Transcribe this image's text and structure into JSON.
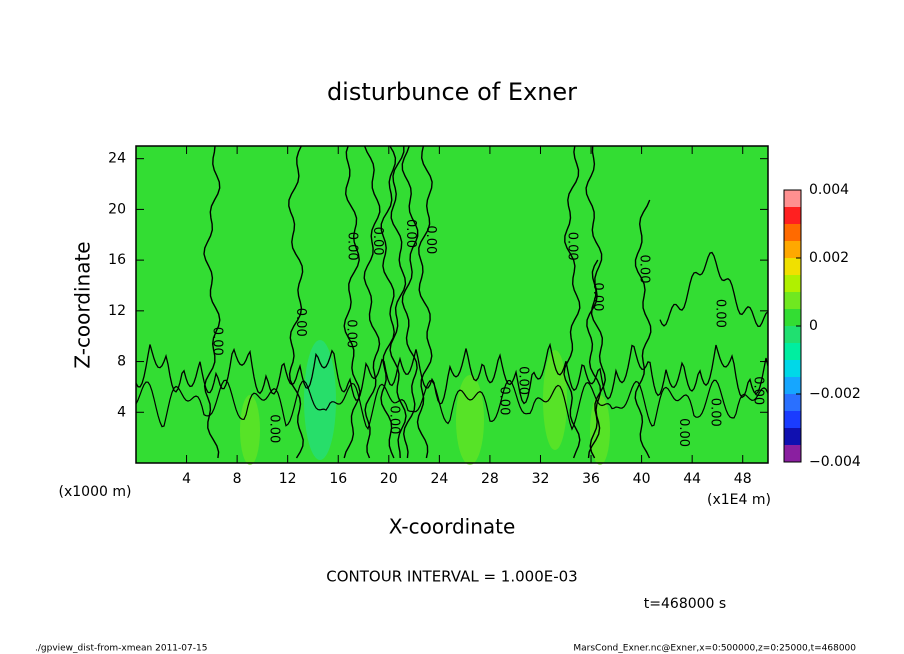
{
  "chart_data": {
    "type": "contour",
    "title": "disturbunce of Exner",
    "x_label": "X-coordinate",
    "y_label": "Z-coordinate",
    "x_unit": "(x1E4 m)",
    "y_unit": "(x1000 m)",
    "xlim": [
      0,
      50
    ],
    "ylim": [
      0,
      25
    ],
    "xticks": [
      4,
      8,
      12,
      16,
      20,
      24,
      28,
      32,
      36,
      40,
      44,
      48
    ],
    "yticks": [
      4,
      8,
      12,
      16,
      20,
      24
    ],
    "contour_labels": [
      {
        "label": "0.00",
        "x": 6.4,
        "y": 9.6
      },
      {
        "label": "0.00",
        "x": 10.9,
        "y": 2.7
      },
      {
        "label": "0.00",
        "x": 13.0,
        "y": 11.1
      },
      {
        "label": "0.00",
        "x": 17.0,
        "y": 10.2
      },
      {
        "label": "0.00",
        "x": 17.1,
        "y": 17.1
      },
      {
        "label": "0.00",
        "x": 19.1,
        "y": 17.5
      },
      {
        "label": "0.00",
        "x": 20.4,
        "y": 3.4
      },
      {
        "label": "0.00",
        "x": 21.7,
        "y": 18.1
      },
      {
        "label": "0.00",
        "x": 23.3,
        "y": 17.6
      },
      {
        "label": "0.00",
        "x": 29.1,
        "y": 4.9
      },
      {
        "label": "0.00",
        "x": 30.6,
        "y": 6.5
      },
      {
        "label": "0.00",
        "x": 34.5,
        "y": 17.1
      },
      {
        "label": "0.00",
        "x": 36.5,
        "y": 13.1
      },
      {
        "label": "0.00",
        "x": 40.2,
        "y": 15.3
      },
      {
        "label": "0.00",
        "x": 43.3,
        "y": 2.4
      },
      {
        "label": "0.00",
        "x": 45.8,
        "y": 4.0
      },
      {
        "label": "0.00",
        "x": 46.2,
        "y": 11.8
      },
      {
        "label": "0.00",
        "x": 49.2,
        "y": 5.7
      }
    ],
    "colorbar": {
      "levels": [
        -0.004,
        -0.0035,
        -0.003,
        -0.0025,
        -0.002,
        -0.0015,
        -0.001,
        -0.0005,
        0,
        0.0005,
        0.001,
        0.0015,
        0.002,
        0.0025,
        0.003,
        0.0035,
        0.004
      ],
      "colors": [
        "#8a1fa0",
        "#1010b0",
        "#1a3cff",
        "#2a70ff",
        "#16a6ff",
        "#00d8e8",
        "#00eea0",
        "#20e070",
        "#33dd33",
        "#70e820",
        "#b0f000",
        "#f0e000",
        "#ffa800",
        "#ff6a00",
        "#ff2020",
        "#ff9090"
      ],
      "ticks": [
        {
          "value": -0.004,
          "label": "−0.004"
        },
        {
          "value": -0.002,
          "label": "−0.002"
        },
        0,
        0.002,
        0.004
      ]
    },
    "field_color": "#33dd33",
    "contour_interval": "CONTOUR INTERVAL = 1.000E-03",
    "time_label": "t=468000 s",
    "footer_left": "./gpview_dist-from-xmean  2011-07-15",
    "footer_right": "MarsCond_Exner.nc@Exner,x=0:500000,z=0:25000,t=468000"
  }
}
